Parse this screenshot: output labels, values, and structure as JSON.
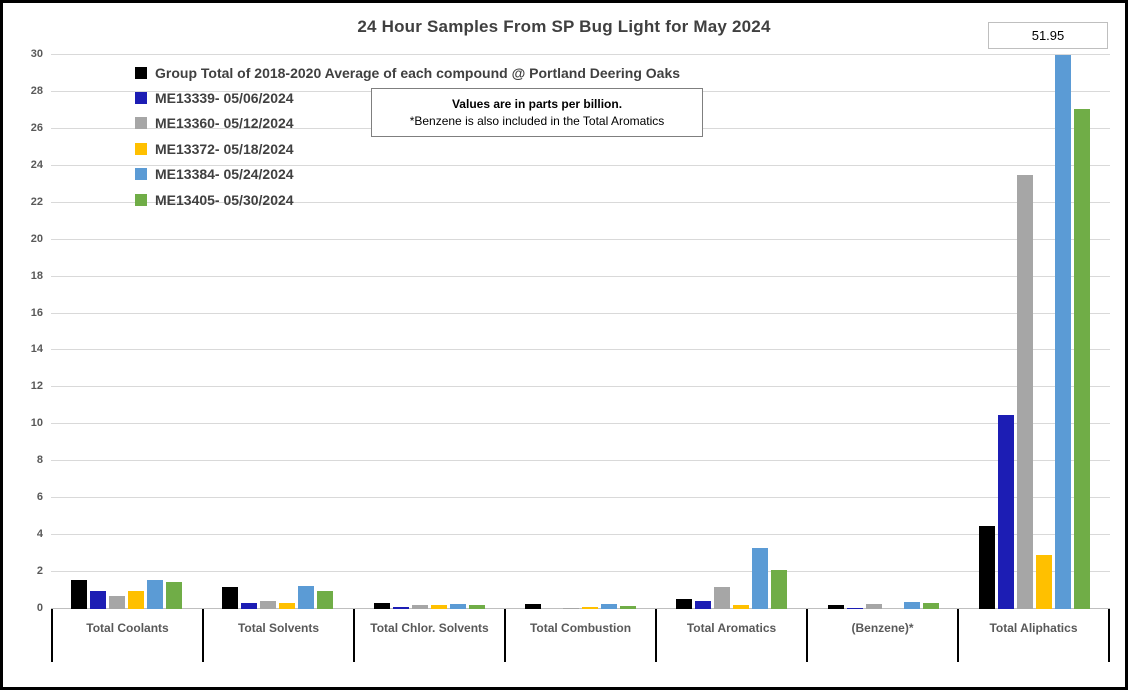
{
  "chart": {
    "title": "24 Hour Samples From SP Bug Light for May 2024",
    "note": {
      "line1": "Values are in parts per billion.",
      "line2": "*Benzene is also included in the Total Aromatics"
    },
    "max_label": "51.95"
  },
  "chart_data": {
    "type": "bar",
    "title": "24 Hour Samples From SP Bug Light for May 2024",
    "categories": [
      "Total Coolants",
      "Total Solvents",
      "Total Chlor. Solvents",
      "Total Combustion",
      "Total Aromatics",
      "(Benzene)*",
      "Total Aliphatics"
    ],
    "series": [
      {
        "name": "Group Total of 2018-2020 Average of each compound @ Portland Deering Oaks",
        "color": "#000000",
        "values": [
          1.55,
          1.2,
          0.35,
          0.28,
          0.55,
          0.2,
          4.5
        ]
      },
      {
        "name": "ME13339- 05/06/2024",
        "color": "#1c1db4",
        "values": [
          1.0,
          0.3,
          0.13,
          0.02,
          0.45,
          0.08,
          10.5
        ]
      },
      {
        "name": "ME13360- 05/12/2024",
        "color": "#a6a6a6",
        "values": [
          0.72,
          0.45,
          0.2,
          0.08,
          1.2,
          0.25,
          23.5
        ]
      },
      {
        "name": "ME13372- 05/18/2024",
        "color": "#ffc000",
        "values": [
          0.95,
          0.3,
          0.2,
          0.1,
          0.2,
          0,
          2.95
        ]
      },
      {
        "name": "ME13384- 05/24/2024",
        "color": "#5b9bd5",
        "values": [
          1.55,
          1.25,
          0.28,
          0.25,
          3.3,
          0.4,
          51.95
        ]
      },
      {
        "name": "ME13405- 05/30/2024",
        "color": "#70ad47",
        "values": [
          1.45,
          1.0,
          0.22,
          0.15,
          2.1,
          0.3,
          27.1
        ]
      }
    ],
    "ylim": [
      0,
      30
    ],
    "ytick_step": 2,
    "grid": true,
    "legend_position": "top-left",
    "ylabel": "",
    "xlabel": "",
    "annotations": [
      "Values are in parts per billion.",
      "*Benzene is also included in the Total Aromatics"
    ],
    "data_labels": [
      {
        "series": "ME13384- 05/24/2024",
        "category": "Total Aliphatics",
        "value": 51.95,
        "note": "bar clipped at axis max"
      }
    ]
  }
}
